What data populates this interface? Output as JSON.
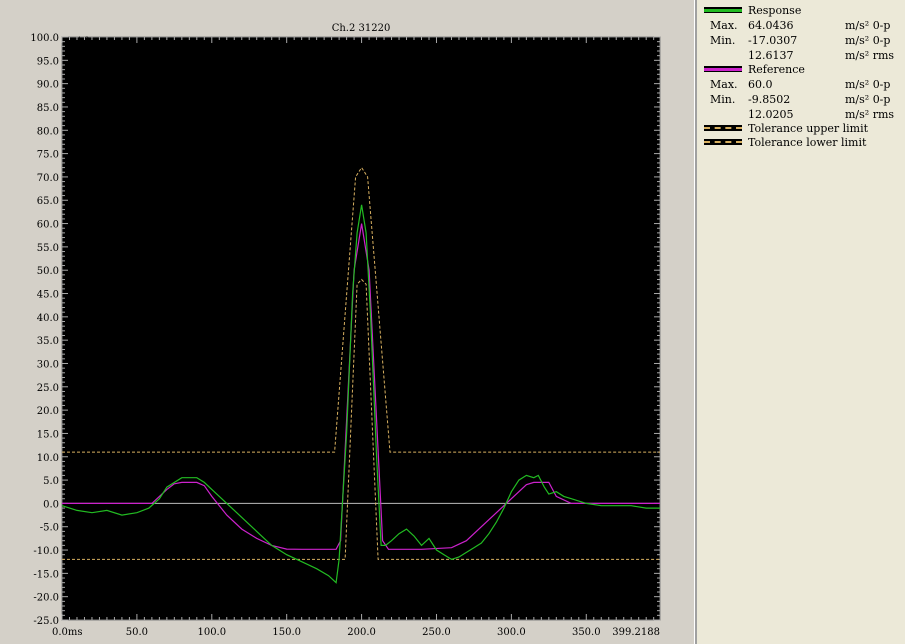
{
  "window": {
    "channel_title": "Ch.2 31220"
  },
  "legend": {
    "entries": [
      {
        "name": "Response",
        "color": "#22bb22",
        "style": "solid",
        "stats": [
          {
            "key": "Max.",
            "value": "64.0436",
            "unit": "m/s² 0-p"
          },
          {
            "key": "Min.",
            "value": "-17.0307",
            "unit": "m/s² 0-p"
          },
          {
            "key": "",
            "value": "12.6137",
            "unit": "m/s² rms"
          }
        ]
      },
      {
        "name": "Reference",
        "color": "#cc22cc",
        "style": "solid",
        "stats": [
          {
            "key": "Max.",
            "value": "60.0",
            "unit": "m/s² 0-p"
          },
          {
            "key": "Min.",
            "value": "-9.8502",
            "unit": "m/s² 0-p"
          },
          {
            "key": "",
            "value": "12.0205",
            "unit": "m/s² rms"
          }
        ]
      },
      {
        "name": "Tolerance upper limit",
        "color": "#d8b060",
        "style": "dashed",
        "stats": []
      },
      {
        "name": "Tolerance lower limit",
        "color": "#d8b060",
        "style": "dashed",
        "stats": []
      }
    ]
  },
  "chart_data": {
    "type": "line",
    "title": "Ch.2 31220",
    "ylabel": "m/s²",
    "xlabel": "",
    "x_unit": "ms",
    "xlim": [
      0,
      399.2188
    ],
    "ylim": [
      -25,
      100
    ],
    "x_ticks": [
      0,
      50,
      100,
      150,
      200,
      250,
      300,
      350,
      399.2188
    ],
    "x_tick_labels": [
      "0.0ms",
      "50.0",
      "100.0",
      "150.0",
      "200.0",
      "250.0",
      "300.0",
      "350.0",
      "399.2188"
    ],
    "y_ticks": [
      100,
      95,
      90,
      85,
      80,
      75,
      70,
      65,
      60,
      55,
      50,
      45,
      40,
      35,
      30,
      25,
      20,
      15,
      10,
      5,
      0,
      -5,
      -10,
      -15,
      -20,
      -25
    ],
    "y_tick_labels": [
      "100.0",
      "95.0",
      "90.0",
      "85.0",
      "80.0",
      "75.0",
      "70.0",
      "65.0",
      "60.0",
      "55.0",
      "50.0",
      "45.0",
      "40.0",
      "35.0",
      "30.0",
      "25.0",
      "20.0",
      "15.0",
      "10.0",
      "5.0",
      "0.0",
      "-5.0",
      "-10.0",
      "-15.0",
      "-20.0",
      "-25.0"
    ],
    "background": "#000000",
    "zero_line_color": "#bbbbbb",
    "series": [
      {
        "name": "Tolerance upper limit",
        "color": "#d8b060",
        "dashed": true,
        "x": [
          0,
          182,
          196,
          200,
          204,
          219,
          399.2188
        ],
        "y": [
          11,
          11,
          70,
          72,
          70,
          11,
          11
        ]
      },
      {
        "name": "Tolerance lower limit",
        "color": "#d8b060",
        "dashed": true,
        "x": [
          0,
          189,
          197,
          200,
          203,
          211,
          399.2188
        ],
        "y": [
          -12,
          -12,
          47,
          48,
          47,
          -12,
          -12
        ]
      },
      {
        "name": "Reference",
        "color": "#cc22cc",
        "dashed": false,
        "x": [
          0,
          60,
          65,
          70,
          75,
          80,
          90,
          95,
          100,
          110,
          120,
          130,
          140,
          150,
          160,
          170,
          183,
          186,
          195,
          200,
          205,
          214,
          218,
          240,
          260,
          270,
          280,
          290,
          300,
          310,
          315,
          325,
          330,
          340,
          399.2188
        ],
        "y": [
          0,
          0,
          1.5,
          3,
          4.2,
          4.5,
          4.5,
          3.8,
          1.5,
          -2.5,
          -5.5,
          -7.5,
          -9,
          -9.8,
          -9.85,
          -9.85,
          -9.85,
          -8,
          50,
          60,
          50,
          -8,
          -9.85,
          -9.85,
          -9.5,
          -8,
          -5,
          -2,
          1,
          4,
          4.5,
          4.5,
          1.5,
          0,
          0
        ]
      },
      {
        "name": "Response",
        "color": "#22bb22",
        "dashed": false,
        "x": [
          0,
          10,
          20,
          30,
          40,
          50,
          58,
          65,
          70,
          80,
          90,
          95,
          100,
          110,
          120,
          130,
          140,
          150,
          160,
          170,
          178,
          183,
          185,
          190,
          194,
          197,
          200,
          203,
          206,
          210,
          213,
          216,
          220,
          225,
          230,
          235,
          240,
          245,
          250,
          255,
          260,
          265,
          270,
          275,
          280,
          285,
          290,
          295,
          300,
          305,
          310,
          315,
          318,
          322,
          325,
          330,
          335,
          340,
          350,
          360,
          370,
          380,
          390,
          399.2188
        ],
        "y": [
          -0.5,
          -1.5,
          -2,
          -1.5,
          -2.5,
          -2,
          -1,
          1,
          3.5,
          5.5,
          5.5,
          4.5,
          3,
          0,
          -3,
          -6,
          -9,
          -11,
          -12.5,
          -14,
          -15.5,
          -17,
          -12,
          15,
          45,
          58,
          64,
          58,
          40,
          10,
          -9,
          -9,
          -8,
          -6.5,
          -5.5,
          -7,
          -9,
          -7.5,
          -10,
          -11,
          -12,
          -11.5,
          -10.5,
          -9.5,
          -8.5,
          -6.5,
          -4,
          -1,
          2.5,
          5,
          6,
          5.5,
          6,
          3.5,
          2,
          2.5,
          1.5,
          1,
          0,
          -0.5,
          -0.5,
          -0.5,
          -1,
          -1
        ]
      }
    ]
  }
}
